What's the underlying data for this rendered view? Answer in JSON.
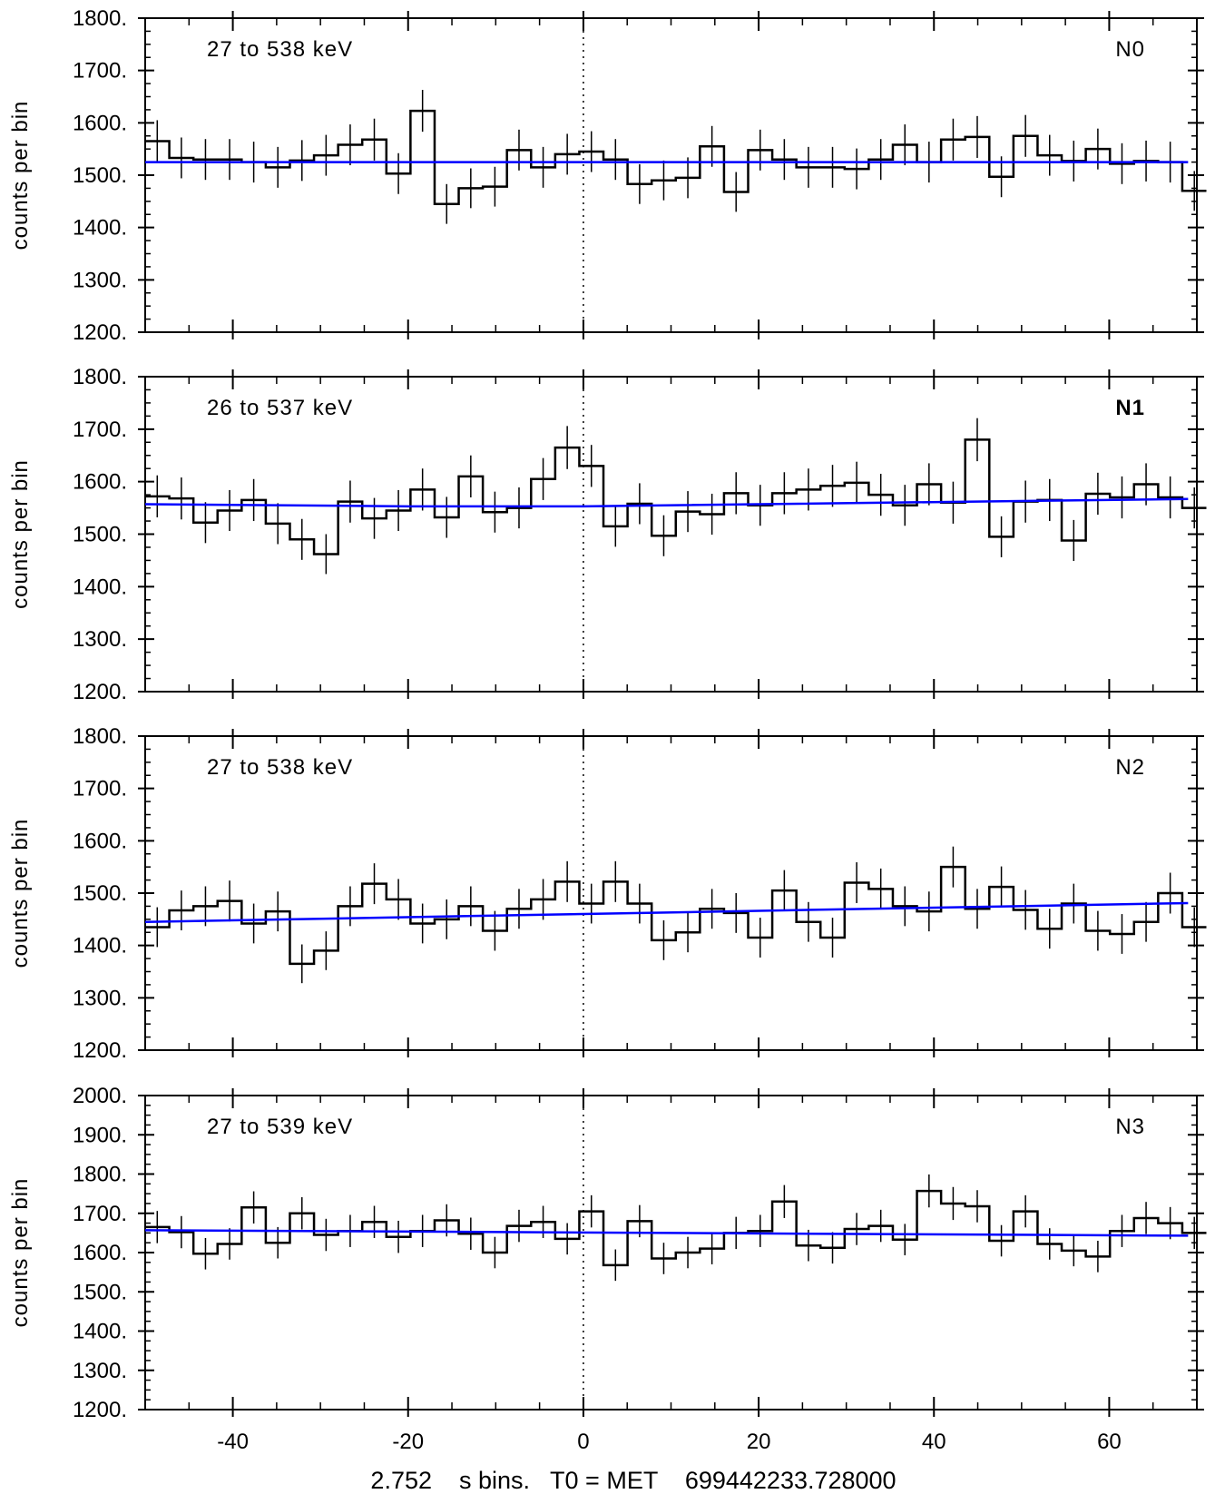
{
  "chart_data": [
    {
      "type": "line",
      "detector": "N0",
      "detector_color": "#000000",
      "energy_range": "27 to 538 keV",
      "ylabel": "counts per bin",
      "ylim": [
        1200,
        1800
      ],
      "yticks": [
        1200,
        1300,
        1400,
        1500,
        1600,
        1700,
        1800
      ],
      "ytick_labels": [
        "1200.",
        "1300.",
        "1400.",
        "1500.",
        "1600.",
        "1700.",
        "1800."
      ],
      "xlim": [
        -50,
        70
      ],
      "counts": [
        1565,
        1533,
        1530,
        1530,
        1525,
        1515,
        1528,
        1538,
        1558,
        1568,
        1503,
        1623,
        1445,
        1475,
        1478,
        1548,
        1515,
        1540,
        1545,
        1530,
        1483,
        1490,
        1495,
        1555,
        1468,
        1548,
        1530,
        1515,
        1515,
        1512,
        1530,
        1558,
        1525,
        1568,
        1573,
        1497,
        1575,
        1538,
        1527,
        1550,
        1522,
        1527,
        1525,
        1470
      ],
      "errors": [
        40,
        39,
        39,
        39,
        39,
        39,
        39,
        39,
        39,
        40,
        39,
        40,
        38,
        38,
        38,
        39,
        39,
        39,
        39,
        39,
        38,
        38,
        39,
        39,
        38,
        39,
        39,
        39,
        39,
        39,
        39,
        39,
        39,
        40,
        40,
        39,
        40,
        39,
        39,
        39,
        39,
        39,
        39,
        38
      ],
      "background_fit": [
        [
          -50,
          1525
        ],
        [
          69,
          1525
        ]
      ]
    },
    {
      "type": "line",
      "detector": "N1",
      "detector_color": "#00ffff",
      "energy_range": "26 to 537 keV",
      "ylabel": "counts per bin",
      "ylim": [
        1200,
        1800
      ],
      "yticks": [
        1200,
        1300,
        1400,
        1500,
        1600,
        1700,
        1800
      ],
      "ytick_labels": [
        "1200.",
        "1300.",
        "1400.",
        "1500.",
        "1600.",
        "1700.",
        "1800."
      ],
      "xlim": [
        -50,
        70
      ],
      "counts": [
        1572,
        1568,
        1522,
        1545,
        1565,
        1520,
        1490,
        1462,
        1562,
        1530,
        1545,
        1585,
        1532,
        1610,
        1542,
        1550,
        1605,
        1665,
        1630,
        1515,
        1558,
        1497,
        1543,
        1538,
        1578,
        1555,
        1578,
        1585,
        1592,
        1598,
        1575,
        1555,
        1595,
        1560,
        1680,
        1495,
        1562,
        1565,
        1488,
        1577,
        1570,
        1595,
        1570,
        1550
      ],
      "errors": [
        40,
        40,
        39,
        39,
        40,
        39,
        39,
        38,
        40,
        39,
        39,
        40,
        39,
        40,
        39,
        39,
        40,
        41,
        40,
        39,
        39,
        39,
        39,
        39,
        40,
        39,
        40,
        40,
        40,
        40,
        40,
        39,
        40,
        40,
        41,
        39,
        40,
        40,
        39,
        40,
        40,
        40,
        40,
        39
      ],
      "background_fit": [
        [
          -50,
          1557
        ],
        [
          -20,
          1553
        ],
        [
          0,
          1553
        ],
        [
          69,
          1567
        ]
      ]
    },
    {
      "type": "line",
      "detector": "N2",
      "detector_color": "#000000",
      "energy_range": "27 to 538 keV",
      "ylabel": "counts per bin",
      "ylim": [
        1200,
        1800
      ],
      "yticks": [
        1200,
        1300,
        1400,
        1500,
        1600,
        1700,
        1800
      ],
      "ytick_labels": [
        "1200.",
        "1300.",
        "1400.",
        "1500.",
        "1600.",
        "1700.",
        "1800."
      ],
      "xlim": [
        -50,
        70
      ],
      "counts": [
        1435,
        1467,
        1475,
        1485,
        1442,
        1465,
        1365,
        1390,
        1475,
        1518,
        1488,
        1442,
        1450,
        1475,
        1428,
        1470,
        1488,
        1522,
        1480,
        1522,
        1480,
        1410,
        1425,
        1470,
        1462,
        1415,
        1505,
        1445,
        1415,
        1520,
        1508,
        1475,
        1465,
        1550,
        1470,
        1512,
        1468,
        1432,
        1480,
        1428,
        1422,
        1445,
        1500,
        1435
      ],
      "errors": [
        38,
        38,
        38,
        39,
        38,
        38,
        37,
        37,
        38,
        39,
        39,
        38,
        38,
        38,
        38,
        38,
        39,
        39,
        38,
        39,
        38,
        38,
        38,
        38,
        38,
        38,
        39,
        38,
        38,
        39,
        39,
        38,
        38,
        39,
        38,
        39,
        38,
        38,
        38,
        38,
        38,
        38,
        39,
        38
      ],
      "background_fit": [
        [
          -50,
          1445
        ],
        [
          69,
          1481
        ]
      ]
    },
    {
      "type": "line",
      "detector": "N3",
      "detector_color": "#000000",
      "energy_range": "27 to 539 keV",
      "ylabel": "counts per bin",
      "ylim": [
        1200,
        2000
      ],
      "yticks": [
        1200,
        1300,
        1400,
        1500,
        1600,
        1700,
        1800,
        1900,
        2000
      ],
      "ytick_labels": [
        "1200.",
        "1300.",
        "1400.",
        "1500.",
        "1600.",
        "1700.",
        "1800.",
        "1900.",
        "2000."
      ],
      "xlim": [
        -50,
        70
      ],
      "counts": [
        1665,
        1652,
        1597,
        1622,
        1715,
        1625,
        1700,
        1645,
        1655,
        1678,
        1640,
        1655,
        1682,
        1648,
        1600,
        1668,
        1678,
        1635,
        1705,
        1568,
        1680,
        1585,
        1600,
        1610,
        1650,
        1655,
        1730,
        1618,
        1612,
        1660,
        1668,
        1633,
        1757,
        1725,
        1718,
        1630,
        1705,
        1622,
        1605,
        1590,
        1655,
        1688,
        1675,
        1650
      ],
      "errors": [
        41,
        41,
        40,
        40,
        41,
        40,
        41,
        41,
        41,
        41,
        41,
        41,
        41,
        41,
        40,
        41,
        41,
        40,
        41,
        40,
        41,
        40,
        40,
        40,
        41,
        41,
        42,
        40,
        40,
        41,
        41,
        40,
        42,
        42,
        41,
        40,
        41,
        40,
        40,
        40,
        41,
        41,
        41,
        41
      ],
      "background_fit": [
        [
          -50,
          1657
        ],
        [
          69,
          1643
        ]
      ]
    }
  ],
  "x_axis": {
    "bin_start": -50,
    "bin_width": 2.752,
    "trigger_line_x": 0,
    "ticks": [
      -40,
      -20,
      0,
      20,
      40,
      60
    ],
    "tick_labels": [
      "-40",
      "-20",
      "0",
      "20",
      "40",
      "60"
    ],
    "label": "2.752    s bins.   T0 = MET    699442233.728000"
  },
  "colors": {
    "histogram": "#000000",
    "fit": "#0000ff",
    "axes": "#000000",
    "background": "#ffffff"
  }
}
